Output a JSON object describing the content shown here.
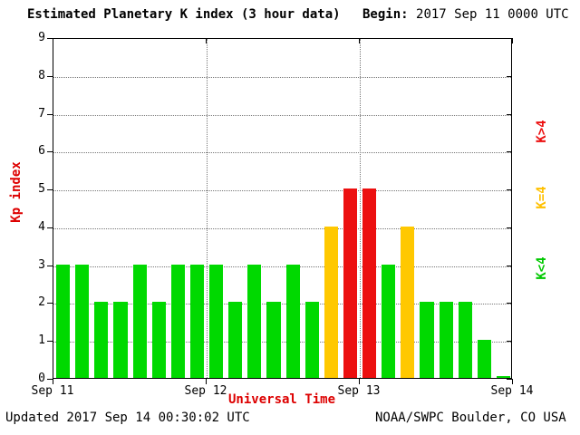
{
  "title": "Estimated Planetary K index (3 hour data)",
  "begin": {
    "label": "Begin:",
    "value": "2017 Sep 11 0000 UTC"
  },
  "footer": {
    "updated": "Updated 2017 Sep 14 00:30:02 UTC",
    "source": "NOAA/SWPC Boulder, CO USA"
  },
  "colors": {
    "axis_title": "#dd0000",
    "text": "#000000",
    "grid": "#777777",
    "kp_low": "#00d900",
    "kp_mid": "#ffc800",
    "kp_high": "#ec1010"
  },
  "chart_data": {
    "type": "bar",
    "title": "Estimated Planetary K index (3 hour data)",
    "xlabel": "Universal Time",
    "ylabel": "Kp index",
    "begin": "2017 Sep 11 0000 UTC",
    "interval_hours": 3,
    "ylim": [
      0,
      9
    ],
    "y_ticks": [
      0,
      1,
      2,
      3,
      4,
      5,
      6,
      7,
      8,
      9
    ],
    "x_tick_labels": [
      "Sep 11",
      "Sep 12",
      "Sep 13",
      "Sep 14"
    ],
    "values": [
      3,
      3,
      2,
      2,
      3,
      2,
      3,
      3,
      3,
      2,
      3,
      2,
      3,
      2,
      4,
      5,
      5,
      3,
      4,
      2,
      2,
      2,
      1,
      0
    ],
    "color_rule": {
      "k_lt_4": "#00d900",
      "k_eq_4": "#ffc800",
      "k_gt_4": "#ec1010"
    },
    "legend": [
      {
        "label": "K>4",
        "color": "#ec1010"
      },
      {
        "label": "K=4",
        "color": "#ffc000"
      },
      {
        "label": "K<4",
        "color": "#00c800"
      }
    ],
    "grid": {
      "horizontal": "dotted line at each integer Kp value",
      "vertical": "dotted line at each day boundary"
    },
    "legend_position": "right side, rotated 90deg CCW"
  }
}
